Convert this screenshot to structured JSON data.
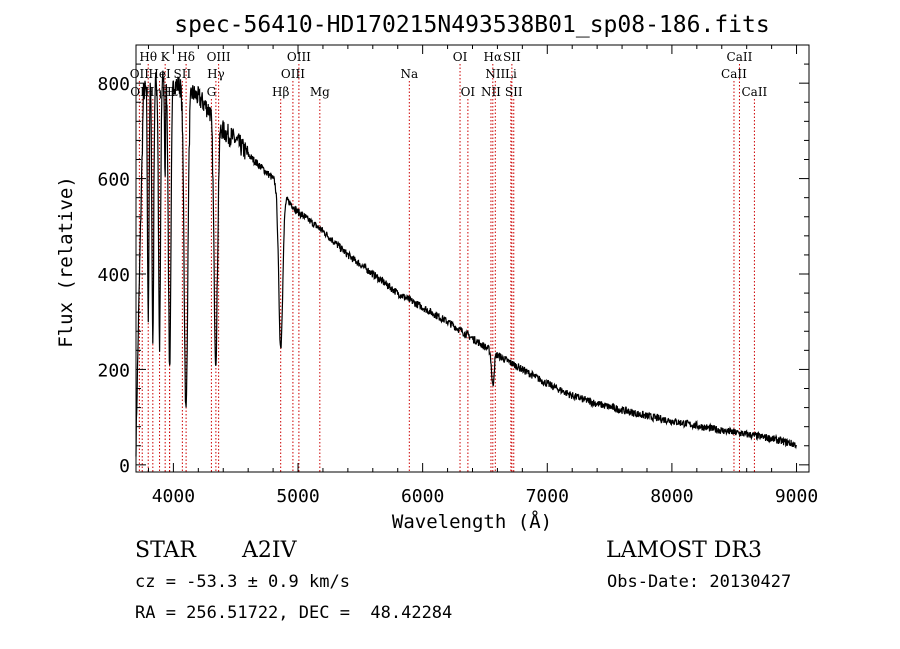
{
  "chart_data": {
    "type": "line",
    "title": "spec-56410-HD170215N493538B01_sp08-186.fits",
    "xlabel": "Wavelength (Å)",
    "ylabel": "Flux (relative)",
    "xlim": [
      3700,
      9100
    ],
    "ylim": [
      -15,
      880
    ],
    "x_ticks": [
      4000,
      5000,
      6000,
      7000,
      8000,
      9000
    ],
    "y_ticks": [
      0,
      200,
      400,
      600,
      800
    ],
    "grid": false,
    "line_color": "#000000",
    "marker_color": "#cc0000",
    "continuum": [
      [
        3700,
        40
      ],
      [
        3720,
        300
      ],
      [
        3760,
        780
      ],
      [
        3800,
        800
      ],
      [
        3900,
        810
      ],
      [
        4000,
        800
      ],
      [
        4100,
        790
      ],
      [
        4200,
        770
      ],
      [
        4300,
        740
      ],
      [
        4400,
        700
      ],
      [
        4500,
        680
      ],
      [
        4600,
        650
      ],
      [
        4700,
        625
      ],
      [
        4800,
        600
      ],
      [
        4900,
        560
      ],
      [
        5000,
        530
      ],
      [
        5200,
        490
      ],
      [
        5400,
        440
      ],
      [
        5600,
        400
      ],
      [
        5800,
        360
      ],
      [
        6000,
        330
      ],
      [
        6200,
        300
      ],
      [
        6400,
        265
      ],
      [
        6600,
        230
      ],
      [
        6800,
        200
      ],
      [
        7000,
        170
      ],
      [
        7200,
        145
      ],
      [
        7400,
        128
      ],
      [
        7600,
        115
      ],
      [
        7800,
        102
      ],
      [
        8000,
        92
      ],
      [
        8200,
        82
      ],
      [
        8400,
        72
      ],
      [
        8600,
        64
      ],
      [
        8800,
        55
      ],
      [
        9000,
        42
      ]
    ],
    "absorption_lines": [
      {
        "wavelength": 3798,
        "depth": 500,
        "width": 6
      },
      {
        "wavelength": 3835,
        "depth": 550,
        "width": 7
      },
      {
        "wavelength": 3889,
        "depth": 560,
        "width": 8
      },
      {
        "wavelength": 3933,
        "depth": 200,
        "width": 4
      },
      {
        "wavelength": 3970,
        "depth": 600,
        "width": 10
      },
      {
        "wavelength": 4101,
        "depth": 680,
        "width": 14
      },
      {
        "wavelength": 4340,
        "depth": 500,
        "width": 14
      },
      {
        "wavelength": 4861,
        "depth": 330,
        "width": 16
      },
      {
        "wavelength": 6563,
        "depth": 70,
        "width": 10
      }
    ],
    "line_markers": [
      {
        "label": "Hθ",
        "wavelength": 3798,
        "row": 1
      },
      {
        "label": "OII",
        "wavelength": 3727,
        "row": 2
      },
      {
        "label": "OIII",
        "wavelength": 3750,
        "row": 3
      },
      {
        "label": "K",
        "wavelength": 3934,
        "row": 1
      },
      {
        "label": "HeI",
        "wavelength": 3889,
        "row": 2
      },
      {
        "label": "Hη",
        "wavelength": 3835,
        "row": 3
      },
      {
        "label": "H",
        "wavelength": 3969,
        "row": 3
      },
      {
        "label": "Hδ",
        "wavelength": 4102,
        "row": 1
      },
      {
        "label": "SII",
        "wavelength": 4072,
        "row": 2
      },
      {
        "label": "Hε",
        "wavelength": 3970,
        "row": 3
      },
      {
        "label": "OIII",
        "wavelength": 4363,
        "row": 1
      },
      {
        "label": "Hγ",
        "wavelength": 4341,
        "row": 2
      },
      {
        "label": "G",
        "wavelength": 4305,
        "row": 3
      },
      {
        "label": "Hβ",
        "wavelength": 4861,
        "row": 3
      },
      {
        "label": "OIII",
        "wavelength": 5007,
        "row": 1
      },
      {
        "label": "OIII",
        "wavelength": 4959,
        "row": 2
      },
      {
        "label": "Mg",
        "wavelength": 5175,
        "row": 3
      },
      {
        "label": "Na",
        "wavelength": 5893,
        "row": 2
      },
      {
        "label": "OI",
        "wavelength": 6300,
        "row": 1
      },
      {
        "label": "OI",
        "wavelength": 6363,
        "row": 3
      },
      {
        "label": "Hα",
        "wavelength": 6563,
        "row": 1
      },
      {
        "label": "SII",
        "wavelength": 6716,
        "row": 1
      },
      {
        "label": "NII",
        "wavelength": 6583,
        "row": 2
      },
      {
        "label": "Li",
        "wavelength": 6708,
        "row": 2
      },
      {
        "label": "NII",
        "wavelength": 6548,
        "row": 3
      },
      {
        "label": "SII",
        "wavelength": 6731,
        "row": 3
      },
      {
        "label": "CaII",
        "wavelength": 8542,
        "row": 1
      },
      {
        "label": "CaII",
        "wavelength": 8498,
        "row": 2
      },
      {
        "label": "CaII",
        "wavelength": 8662,
        "row": 3
      }
    ]
  },
  "info": {
    "object_class": "STAR",
    "subclass": "A2IV",
    "survey": "LAMOST DR3",
    "cz": "cz = -53.3 ± 0.9 km/s",
    "obs_date": "Obs-Date: 20130427",
    "coords": "RA = 256.51722, DEC =  48.42284"
  }
}
